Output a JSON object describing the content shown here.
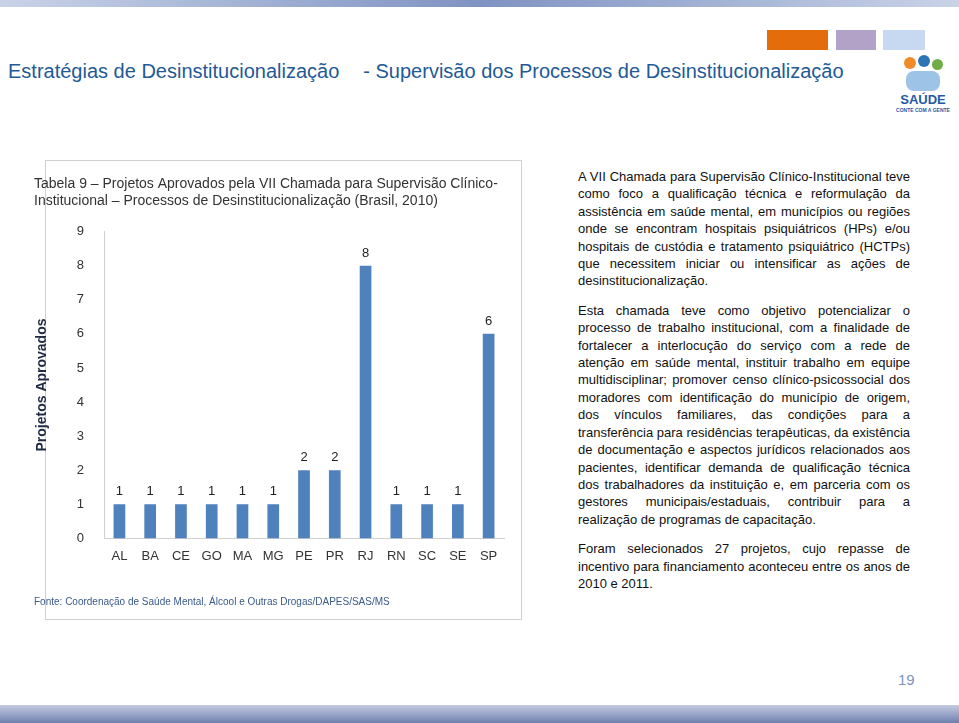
{
  "header": {
    "title": "Estratégias de Desinstitucionalização",
    "subtitle": "- Supervisão dos Processos de Desinstitucionalização"
  },
  "logo": {
    "name": "SAÚDE",
    "slogan": "CONTE COM A GENTE"
  },
  "chart_data": {
    "type": "bar",
    "title": [
      "Tabela 9 – Projetos Aprovados pela VII Chamada para Supervisão Clínico-",
      "Institucional – Processos de Desinstitucionalização (Brasil, 2010)"
    ],
    "y_label": "Projetos Aprovados",
    "source": "Fonte: Coordenação de Saúde Mental, Álcool e Outras Drogas/DAPES/SAS/MS",
    "categories": [
      "AL",
      "BA",
      "CE",
      "GO",
      "MA",
      "MG",
      "PE",
      "PR",
      "RJ",
      "RN",
      "SC",
      "SE",
      "SP"
    ],
    "values": [
      1,
      1,
      1,
      1,
      1,
      1,
      2,
      2,
      8,
      1,
      1,
      1,
      6
    ],
    "color": "#4f81bd",
    "ylim": [
      0,
      9
    ],
    "yticks": [
      0,
      1,
      2,
      3,
      4,
      5,
      6,
      7,
      8,
      9
    ],
    "grid": false,
    "data_labels": true
  },
  "paragraphs": [
    "A VII Chamada para Supervisão Clínico-Institucional teve como foco a qualificação técnica e reformulação da assistência em saúde mental, em municípios ou regiões onde se encontram hospitais psiquiátricos (HPs) e/ou hospitais de custódia e tratamento psiquiátrico (HCTPs) que necessitem iniciar ou intensificar as ações de desinstitucionalização.",
    "Esta chamada teve como objetivo potencializar o processo de trabalho institucional, com a finalidade de fortalecer a interlocução do serviço com a rede de atenção em saúde mental, instituir trabalho em equipe multidisciplinar; promover censo clínico-psicossocial dos moradores com identificação do município de origem, dos vínculos familiares, das condições para a transferência para residências terapêuticas, da existência de documentação e aspectos jurídicos relacionados aos pacientes, identificar demanda de qualificação técnica dos trabalhadores da instituição e, em parceria com os gestores municipais/estaduais, contribuir para a realização de programas de capacitação.",
    "Foram selecionados 27 projetos, cujo repasse de incentivo para financiamento aconteceu entre os anos de 2010 e 2011."
  ],
  "page_number": 19
}
